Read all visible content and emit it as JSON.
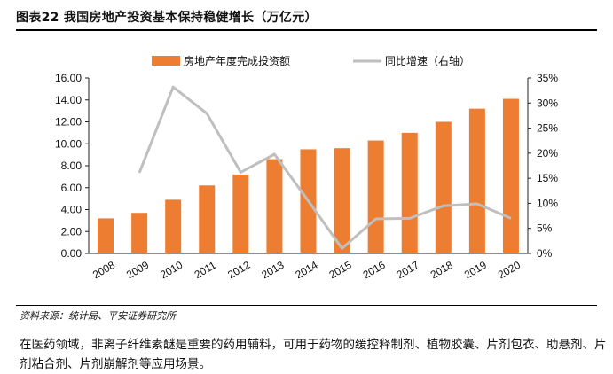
{
  "header": {
    "title": "图表22    我国房地产投资基本保持稳健增长（万亿元）"
  },
  "chart_data": {
    "type": "bar",
    "categories": [
      "2008",
      "2009",
      "2010",
      "2011",
      "2012",
      "2013",
      "2014",
      "2015",
      "2016",
      "2017",
      "2018",
      "2019",
      "2020"
    ],
    "series": [
      {
        "name": "房地产年度完成投资额",
        "type": "bar",
        "axis": "left",
        "color": "#ED7D31",
        "values": [
          3.2,
          3.7,
          4.9,
          6.2,
          7.2,
          8.6,
          9.5,
          9.6,
          10.3,
          11.0,
          12.0,
          13.2,
          14.1
        ]
      },
      {
        "name": "同比增速（右轴）",
        "type": "line",
        "axis": "right",
        "color": "#BFBFBF",
        "values": [
          null,
          16.1,
          33.2,
          27.9,
          16.2,
          19.8,
          10.5,
          1.0,
          6.9,
          7.0,
          9.5,
          9.9,
          7.0
        ]
      }
    ],
    "y_left": {
      "lim": [
        0,
        16
      ],
      "ticks": [
        "0.00",
        "2.00",
        "4.00",
        "6.00",
        "8.00",
        "10.00",
        "12.00",
        "14.00",
        "16.00"
      ]
    },
    "y_right": {
      "lim": [
        0,
        35
      ],
      "ticks": [
        "0%",
        "5%",
        "10%",
        "15%",
        "20%",
        "25%",
        "30%",
        "35%"
      ]
    },
    "legend_position": "top",
    "grid": false
  },
  "footer": {
    "source": "资料来源：统计局、平安证券研究所",
    "body_text": "在医药领域，非离子纤维素醚是重要的药用辅料，可用于药物的缓控释制剂、植物胶囊、片剂包衣、助悬剂、片剂粘合剂、片剂崩解剂等应用场景。"
  }
}
